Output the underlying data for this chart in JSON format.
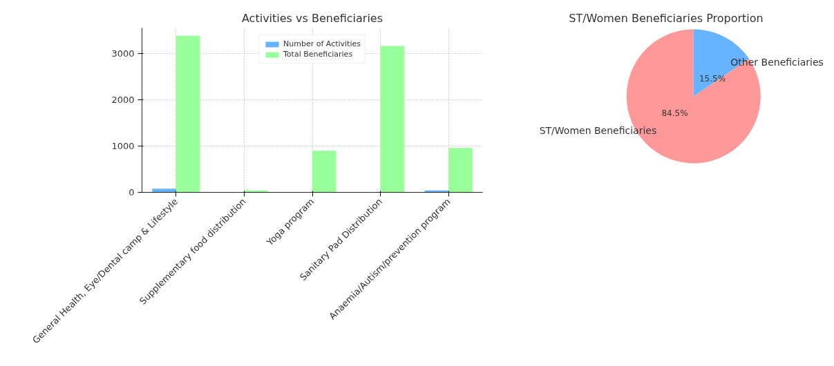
{
  "chart_data": [
    {
      "type": "bar",
      "title": "Activities vs Beneficiaries",
      "categories": [
        "General Health, Eye/Dental camp & Lifestyle",
        "Supplementary food distribution",
        "Yoga program",
        "Sanitary Pad Distribution",
        "Anaemia/Autism/prevention program"
      ],
      "series": [
        {
          "name": "Number of Activities",
          "color": "#66b3ff",
          "values": [
            80,
            0,
            0,
            0,
            40
          ]
        },
        {
          "name": "Total Beneficiaries",
          "color": "#99ff99",
          "values": [
            3390,
            40,
            900,
            3170,
            960
          ]
        }
      ],
      "ylim": [
        0,
        3560
      ],
      "yticks": [
        0,
        1000,
        2000,
        3000
      ],
      "grid": true,
      "legend": "top"
    },
    {
      "type": "pie",
      "title": "ST/Women Beneficiaries Proportion",
      "categories": [
        "ST/Women Beneficiaries",
        "Other Beneficiaries"
      ],
      "values": [
        84.5,
        15.5
      ],
      "value_labels": [
        "84.5%",
        "15.5%"
      ],
      "colors": [
        "#ff9999",
        "#66b3ff"
      ]
    }
  ]
}
